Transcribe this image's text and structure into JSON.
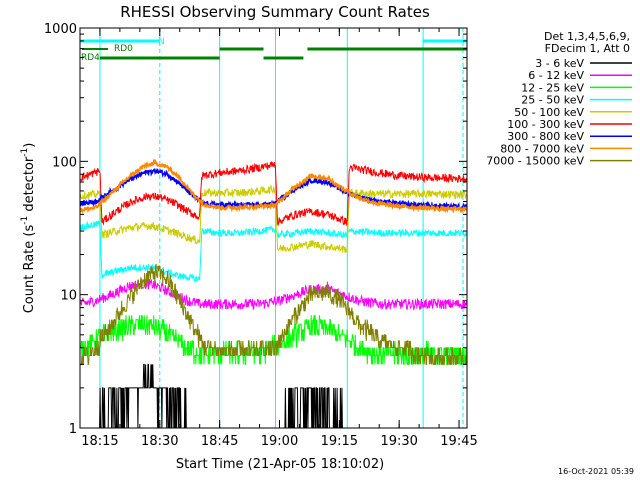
{
  "chart_data": {
    "type": "line",
    "title": "RHESSI Observing Summary Count Rates",
    "xlabel": "Start Time (21-Apr-05 18:10:02)",
    "ylabel_main": "Count Rate (s",
    "ylabel_sup1": "-1",
    "ylabel_mid": " detector",
    "ylabel_sup2": "-1",
    "ylabel_end": ")",
    "yscale": "log",
    "xlim_minutes": [
      0,
      97
    ],
    "ylim": [
      1,
      1000
    ],
    "x_ticks": [
      {
        "label": "18:15",
        "minute": 5
      },
      {
        "label": "18:30",
        "minute": 20
      },
      {
        "label": "18:45",
        "minute": 35
      },
      {
        "label": "19:00",
        "minute": 50
      },
      {
        "label": "19:15",
        "minute": 65
      },
      {
        "label": "19:30",
        "minute": 80
      },
      {
        "label": "19:45",
        "minute": 95
      }
    ],
    "y_ticks": [
      {
        "label": "1",
        "value": 1
      },
      {
        "label": "10",
        "value": 10
      },
      {
        "label": "100",
        "value": 100
      },
      {
        "label": "1000",
        "value": 1000
      }
    ],
    "legend_header": [
      "Det 1,3,4,5,6,9,",
      "FDecim 1, Att 0"
    ],
    "series": [
      {
        "name": "3 - 6 keV",
        "color": "#000000",
        "points": [
          [
            0,
            1.5
          ],
          [
            4,
            2.0
          ],
          [
            8,
            2.4
          ],
          [
            12,
            3.0
          ],
          [
            15,
            3.4
          ],
          [
            18,
            3.5
          ],
          [
            21,
            3.0
          ],
          [
            24,
            2.4
          ],
          [
            27,
            1.9
          ],
          [
            29,
            1.6
          ],
          [
            33,
            1.2
          ],
          [
            35,
            1.5
          ],
          [
            40,
            1.4
          ],
          [
            45,
            1.4
          ],
          [
            49,
            1.4
          ],
          [
            50,
            2.0
          ],
          [
            54,
            2.6
          ],
          [
            58,
            3.0
          ],
          [
            62,
            2.4
          ],
          [
            66,
            1.8
          ],
          [
            70,
            1.4
          ],
          [
            75,
            1.4
          ],
          [
            80,
            1.4
          ],
          [
            85,
            1.4
          ],
          [
            90,
            1.4
          ],
          [
            97,
            1.4
          ]
        ]
      },
      {
        "name": "6 - 12 keV",
        "color": "#ff00ff",
        "points": [
          [
            0,
            8.5
          ],
          [
            4,
            9.0
          ],
          [
            8,
            10.0
          ],
          [
            12,
            11.5
          ],
          [
            15,
            12.0
          ],
          [
            18,
            12.0
          ],
          [
            21,
            11.0
          ],
          [
            24,
            10.0
          ],
          [
            27,
            9.0
          ],
          [
            30,
            8.5
          ],
          [
            35,
            8.5
          ],
          [
            40,
            8.5
          ],
          [
            45,
            8.5
          ],
          [
            50,
            9.0
          ],
          [
            54,
            10.0
          ],
          [
            58,
            11.0
          ],
          [
            62,
            11.0
          ],
          [
            66,
            10.0
          ],
          [
            70,
            9.0
          ],
          [
            75,
            8.5
          ],
          [
            80,
            8.5
          ],
          [
            85,
            8.5
          ],
          [
            90,
            8.5
          ],
          [
            97,
            8.5
          ]
        ]
      },
      {
        "name": "12 - 25 keV",
        "color": "#00ff00",
        "points": [
          [
            0,
            3.8
          ],
          [
            4,
            4.6
          ],
          [
            8,
            5.3
          ],
          [
            12,
            5.8
          ],
          [
            15,
            6.0
          ],
          [
            18,
            5.8
          ],
          [
            21,
            5.3
          ],
          [
            24,
            4.6
          ],
          [
            27,
            4.0
          ],
          [
            30,
            3.6
          ],
          [
            35,
            3.6
          ],
          [
            40,
            3.6
          ],
          [
            45,
            3.6
          ],
          [
            50,
            4.2
          ],
          [
            54,
            5.0
          ],
          [
            58,
            5.8
          ],
          [
            62,
            5.6
          ],
          [
            66,
            4.8
          ],
          [
            70,
            4.0
          ],
          [
            75,
            3.6
          ],
          [
            80,
            3.6
          ],
          [
            85,
            3.6
          ],
          [
            90,
            3.6
          ],
          [
            97,
            3.6
          ]
        ]
      },
      {
        "name": "25 - 50 keV",
        "color": "#00ffff",
        "points": [
          [
            0,
            32
          ],
          [
            5,
            34
          ],
          [
            5.5,
            14
          ],
          [
            9,
            15
          ],
          [
            13,
            16
          ],
          [
            18,
            16
          ],
          [
            21,
            15
          ],
          [
            24,
            14
          ],
          [
            27,
            13.5
          ],
          [
            30,
            13
          ],
          [
            30.5,
            30
          ],
          [
            35,
            29
          ],
          [
            40,
            29
          ],
          [
            45,
            30
          ],
          [
            49,
            31
          ],
          [
            49.5,
            28
          ],
          [
            54,
            29
          ],
          [
            58,
            30
          ],
          [
            62,
            29
          ],
          [
            66,
            28
          ],
          [
            67,
            28
          ],
          [
            67.5,
            30
          ],
          [
            75,
            29
          ],
          [
            80,
            29
          ],
          [
            85,
            29
          ],
          [
            90,
            29
          ],
          [
            97,
            29
          ]
        ]
      },
      {
        "name": "50 - 100 keV",
        "color": "#cccc00",
        "points": [
          [
            0,
            55
          ],
          [
            5,
            57
          ],
          [
            5.5,
            28
          ],
          [
            9,
            30
          ],
          [
            13,
            32
          ],
          [
            18,
            33
          ],
          [
            21,
            31
          ],
          [
            24,
            29
          ],
          [
            27,
            27
          ],
          [
            30,
            25
          ],
          [
            30.5,
            58
          ],
          [
            35,
            58
          ],
          [
            40,
            58
          ],
          [
            45,
            60
          ],
          [
            49,
            62
          ],
          [
            49.5,
            22
          ],
          [
            54,
            23
          ],
          [
            58,
            24
          ],
          [
            62,
            23
          ],
          [
            66,
            22
          ],
          [
            67,
            22
          ],
          [
            67.5,
            58
          ],
          [
            75,
            57
          ],
          [
            80,
            57
          ],
          [
            85,
            57
          ],
          [
            90,
            57
          ],
          [
            97,
            56
          ]
        ]
      },
      {
        "name": "100 - 300 keV",
        "color": "#ff0000",
        "points": [
          [
            0,
            75
          ],
          [
            5,
            85
          ],
          [
            5.5,
            35
          ],
          [
            9,
            42
          ],
          [
            13,
            50
          ],
          [
            17,
            55
          ],
          [
            20,
            54
          ],
          [
            24,
            48
          ],
          [
            27,
            42
          ],
          [
            30,
            38
          ],
          [
            30.5,
            78
          ],
          [
            35,
            82
          ],
          [
            40,
            85
          ],
          [
            45,
            90
          ],
          [
            49,
            95
          ],
          [
            49.5,
            35
          ],
          [
            54,
            40
          ],
          [
            58,
            42
          ],
          [
            62,
            40
          ],
          [
            66,
            36
          ],
          [
            67,
            35
          ],
          [
            67.5,
            90
          ],
          [
            75,
            82
          ],
          [
            80,
            78
          ],
          [
            85,
            76
          ],
          [
            90,
            75
          ],
          [
            97,
            74
          ]
        ]
      },
      {
        "name": "300 - 800 keV",
        "color": "#0000ff",
        "points": [
          [
            0,
            48
          ],
          [
            4,
            50
          ],
          [
            8,
            60
          ],
          [
            12,
            72
          ],
          [
            16,
            82
          ],
          [
            19,
            85
          ],
          [
            22,
            80
          ],
          [
            25,
            68
          ],
          [
            28,
            56
          ],
          [
            31,
            48
          ],
          [
            35,
            47
          ],
          [
            40,
            47
          ],
          [
            45,
            47
          ],
          [
            49,
            48
          ],
          [
            50,
            52
          ],
          [
            54,
            62
          ],
          [
            58,
            72
          ],
          [
            62,
            70
          ],
          [
            66,
            60
          ],
          [
            70,
            54
          ],
          [
            75,
            50
          ],
          [
            80,
            48
          ],
          [
            85,
            47
          ],
          [
            90,
            46
          ],
          [
            97,
            46
          ]
        ]
      },
      {
        "name": "800 - 7000 keV",
        "color": "#ff8800",
        "points": [
          [
            0,
            43
          ],
          [
            4,
            45
          ],
          [
            8,
            58
          ],
          [
            12,
            75
          ],
          [
            16,
            92
          ],
          [
            19,
            97
          ],
          [
            22,
            90
          ],
          [
            25,
            75
          ],
          [
            28,
            58
          ],
          [
            31,
            48
          ],
          [
            35,
            45
          ],
          [
            40,
            45
          ],
          [
            45,
            46
          ],
          [
            49,
            47
          ],
          [
            50,
            50
          ],
          [
            54,
            65
          ],
          [
            58,
            78
          ],
          [
            62,
            75
          ],
          [
            66,
            62
          ],
          [
            70,
            53
          ],
          [
            75,
            48
          ],
          [
            80,
            46
          ],
          [
            85,
            45
          ],
          [
            90,
            44
          ],
          [
            97,
            44
          ]
        ]
      },
      {
        "name": "7000 - 15000 keV",
        "color": "#808000",
        "points": [
          [
            0,
            3.2
          ],
          [
            4,
            4.0
          ],
          [
            8,
            6.0
          ],
          [
            12,
            9.0
          ],
          [
            16,
            13.0
          ],
          [
            19,
            15.0
          ],
          [
            22,
            13.0
          ],
          [
            25,
            9.0
          ],
          [
            28,
            6.0
          ],
          [
            31,
            4.2
          ],
          [
            35,
            3.8
          ],
          [
            40,
            3.8
          ],
          [
            45,
            3.8
          ],
          [
            49,
            4.0
          ],
          [
            50,
            4.6
          ],
          [
            54,
            7.0
          ],
          [
            58,
            10.0
          ],
          [
            62,
            10.5
          ],
          [
            66,
            8.5
          ],
          [
            70,
            6.0
          ],
          [
            75,
            4.5
          ],
          [
            80,
            4.0
          ],
          [
            85,
            3.6
          ],
          [
            90,
            3.4
          ],
          [
            97,
            3.2
          ]
        ]
      }
    ],
    "status_bars": [
      {
        "label": "N",
        "color": "#00ffff",
        "segments": [
          [
            0,
            20
          ],
          [
            86,
            97
          ]
        ]
      },
      {
        "label": "RD0",
        "color": "#008000",
        "segments": [
          [
            35,
            46
          ],
          [
            57,
            97
          ]
        ]
      },
      {
        "label": "RD4",
        "color": "#008000",
        "segments": [
          [
            5,
            35
          ],
          [
            46,
            56
          ]
        ]
      }
    ],
    "vlines": [
      {
        "minute": 5,
        "style": "solid"
      },
      {
        "minute": 20,
        "style": "dashed"
      },
      {
        "minute": 35,
        "style": "solid"
      },
      {
        "minute": 49,
        "style": "solid"
      },
      {
        "minute": 67,
        "style": "solid"
      },
      {
        "minute": 86,
        "style": "solid"
      },
      {
        "minute": 96,
        "style": "dashed"
      }
    ],
    "footer_timestamp": "16-Oct-2021 05:39",
    "grid": false,
    "legend_position": "right"
  }
}
